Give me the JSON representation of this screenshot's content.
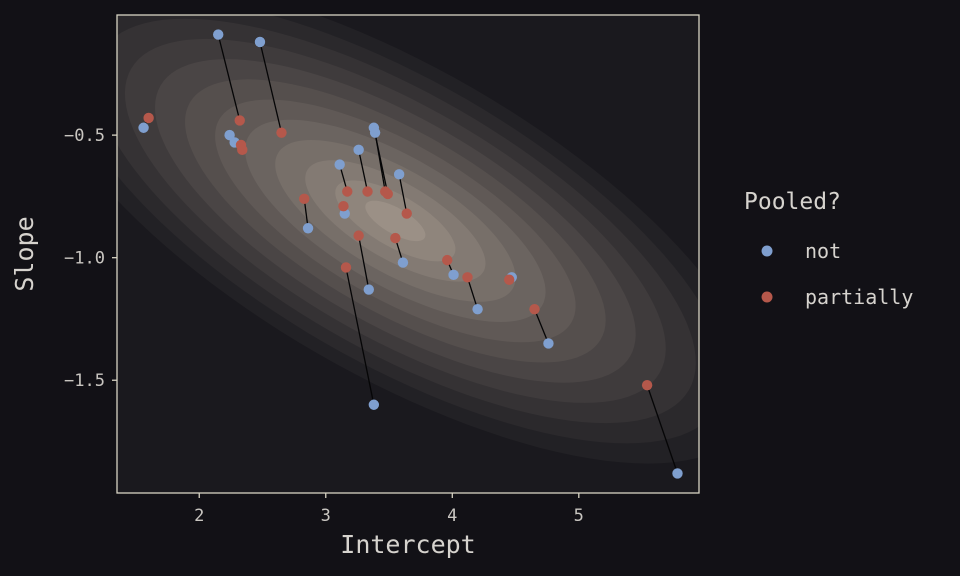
{
  "chart_data": {
    "type": "scatter",
    "title": "",
    "xlabel": "Intercept",
    "ylabel": "Slope",
    "xlim": [
      1.35,
      5.95
    ],
    "ylim": [
      -1.96,
      -0.01
    ],
    "x_ticks": [
      2,
      3,
      4,
      5
    ],
    "y_ticks": [
      -0.5,
      -1.0,
      -1.5
    ],
    "y_tick_labels": [
      "−0.5",
      "−1.0",
      "−1.5"
    ],
    "grid": false,
    "legend": {
      "title": "Pooled?",
      "placement": "right",
      "entries": [
        {
          "label": "not",
          "color": "#7f9fcf"
        },
        {
          "label": "partially",
          "color": "#b5584b"
        }
      ]
    },
    "background_density": {
      "center": [
        3.55,
        -0.85
      ],
      "sd": [
        0.95,
        0.33
      ],
      "correlation": -0.7,
      "levels": 12,
      "colors": [
        "#1b1a1f",
        "#9b9086"
      ]
    },
    "series": [
      {
        "name": "not",
        "color": "#7f9fcf",
        "x": [
          1.56,
          2.15,
          2.48,
          2.24,
          2.28,
          3.11,
          3.15,
          2.86,
          3.26,
          3.38,
          3.39,
          3.58,
          3.61,
          3.34,
          3.38,
          4.01,
          4.2,
          4.47,
          4.76,
          5.78
        ],
        "y": [
          -0.47,
          -0.09,
          -0.12,
          -0.5,
          -0.53,
          -0.62,
          -0.82,
          -0.88,
          -0.56,
          -0.47,
          -0.49,
          -0.66,
          -1.02,
          -1.13,
          -1.6,
          -1.07,
          -1.21,
          -1.08,
          -1.35,
          -1.88
        ]
      },
      {
        "name": "partially",
        "color": "#b5584b",
        "x": [
          1.6,
          2.32,
          2.65,
          2.34,
          2.33,
          3.17,
          3.14,
          2.83,
          3.33,
          3.49,
          3.47,
          3.64,
          3.55,
          3.26,
          3.16,
          3.96,
          4.12,
          4.45,
          4.65,
          5.54
        ],
        "y": [
          -0.43,
          -0.44,
          -0.49,
          -0.56,
          -0.54,
          -0.73,
          -0.79,
          -0.76,
          -0.73,
          -0.74,
          -0.73,
          -0.82,
          -0.92,
          -0.91,
          -1.04,
          -1.01,
          -1.08,
          -1.09,
          -1.21,
          -1.52
        ]
      }
    ]
  }
}
